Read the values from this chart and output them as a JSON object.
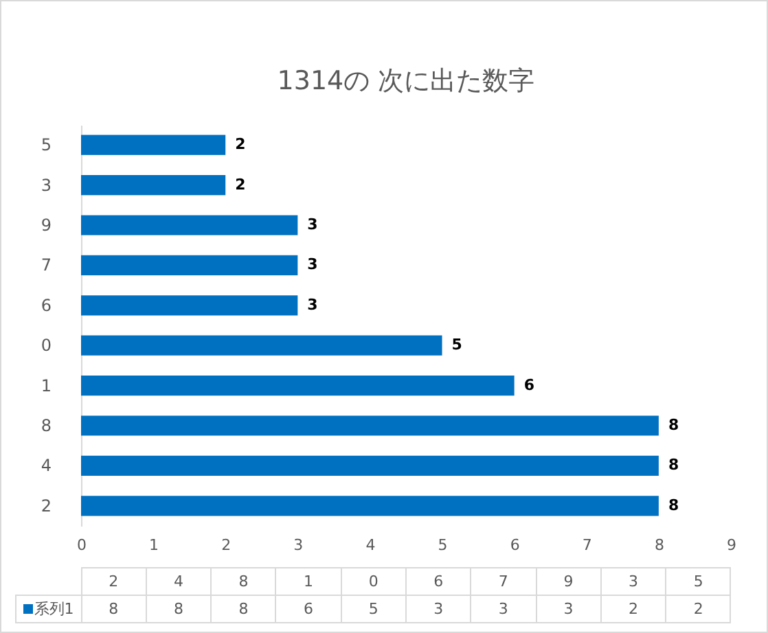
{
  "chart_data": {
    "type": "bar",
    "orientation": "horizontal",
    "title": "1314の 次に出た数字",
    "categories": [
      "5",
      "3",
      "9",
      "7",
      "6",
      "0",
      "1",
      "8",
      "4",
      "2"
    ],
    "series": [
      {
        "name": "系列1",
        "color": "#0070c0",
        "values": [
          2,
          2,
          3,
          3,
          3,
          5,
          6,
          8,
          8,
          8
        ]
      }
    ],
    "xlim": [
      0,
      9
    ],
    "xticks": [
      0,
      1,
      2,
      3,
      4,
      5,
      6,
      7,
      8,
      9
    ],
    "data_labels": true,
    "legend": "bottom"
  }
}
